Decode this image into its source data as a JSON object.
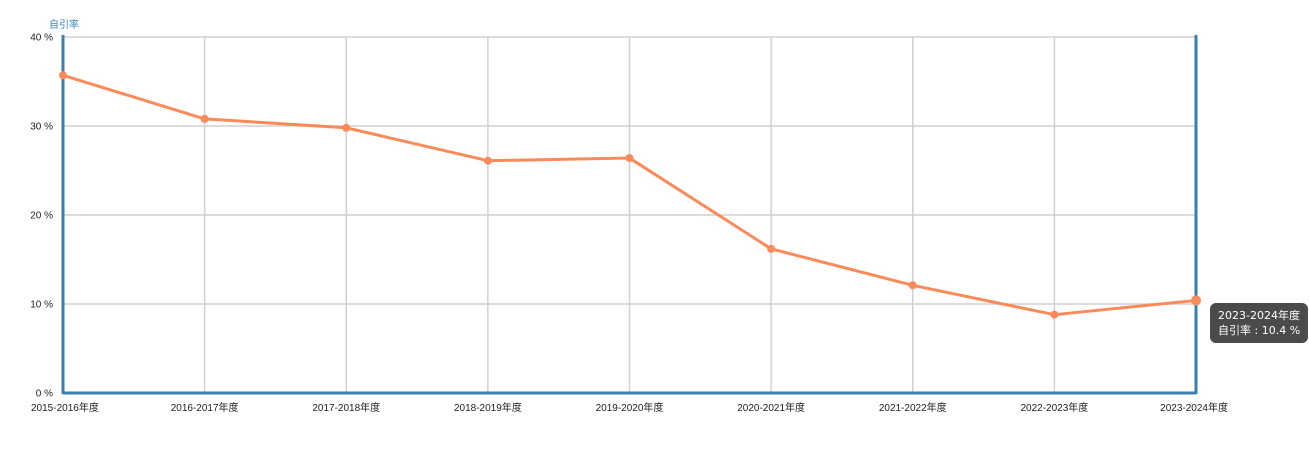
{
  "chart_data": {
    "type": "line",
    "ylabel": "自引率",
    "ylim": [
      0,
      40
    ],
    "y_ticks": [
      "0 %",
      "10 %",
      "20 %",
      "30 %",
      "40 %"
    ],
    "categories": [
      "2015-2016年度",
      "2016-2017年度",
      "2017-2018年度",
      "2018-2019年度",
      "2019-2020年度",
      "2020-2021年度",
      "2021-2022年度",
      "2022-2023年度",
      "2023-2024年度"
    ],
    "series": [
      {
        "name": "自引率",
        "values": [
          35.7,
          30.8,
          29.8,
          26.1,
          26.4,
          16.2,
          12.1,
          8.8,
          10.4
        ]
      }
    ],
    "grid": true,
    "colors": {
      "line": "#fa8a5a",
      "axis": "#3a7fb0",
      "grid": "#d0d0d0"
    }
  },
  "tooltip": {
    "title": "2023-2024年度",
    "series_label": "自引率",
    "separator": " : ",
    "value_text": "10.4 %"
  }
}
